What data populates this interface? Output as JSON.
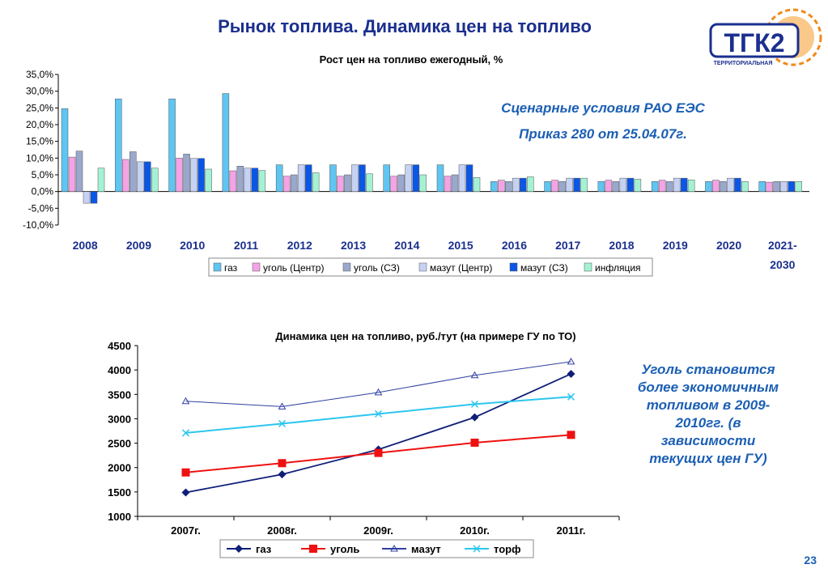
{
  "title": "Рынок топлива. Динамика цен на топливо",
  "logo": {
    "text": "ТГК2",
    "subtext": "ТЕРРИТОРИАЛЬНАЯ"
  },
  "note1": {
    "line1": "Сценарные условия РАО ЕЭС",
    "line2": "Приказ 280 от 25.04.07г."
  },
  "note2": {
    "line1": "Уголь становится",
    "line2": "более экономичным",
    "line3": "топливом  в 2009-",
    "line4": "2010гг. (в",
    "line5": "зависимости",
    "line6": "текущих цен  ГУ)"
  },
  "page_number": "23",
  "chart_data": [
    {
      "type": "bar",
      "title": "Рост цен на топливо ежегодный, %",
      "categories": [
        "2008",
        "2009",
        "2010",
        "2011",
        "2012",
        "2013",
        "2014",
        "2015",
        "2016",
        "2017",
        "2018",
        "2019",
        "2020",
        "2021-2030"
      ],
      "ylim": [
        -10,
        35
      ],
      "yticks": [
        "35,0%",
        "30,0%",
        "25,0%",
        "20,0%",
        "15,0%",
        "10,0%",
        "5,0%",
        "0,0%",
        "-5,0%",
        "-10,0%"
      ],
      "legend_position": "bottom",
      "series": [
        {
          "name": "газ",
          "color": "#5fc5f2",
          "values": [
            24.8,
            27.7,
            27.7,
            29.3,
            8,
            8,
            8,
            8,
            3,
            3,
            3,
            3,
            3,
            3
          ]
        },
        {
          "name": "уголь (Центр)",
          "color": "#f4a3e6",
          "values": [
            10.3,
            9.6,
            10,
            6.2,
            4.6,
            4.6,
            4.6,
            4.6,
            3.4,
            3.4,
            3.4,
            3.4,
            3.4,
            2.8
          ]
        },
        {
          "name": "уголь (СЗ)",
          "color": "#99a8cc",
          "values": [
            12.1,
            11.9,
            11.2,
            7.6,
            5,
            5,
            5,
            5,
            3,
            3,
            3,
            3,
            3,
            3
          ]
        },
        {
          "name": "мазут (Центр)",
          "color": "#c6d2f4",
          "values": [
            -3.5,
            8.9,
            9.9,
            7,
            8,
            8,
            8,
            8,
            4,
            4,
            4,
            4,
            4,
            3
          ]
        },
        {
          "name": "мазут (СЗ)",
          "color": "#0a56e6",
          "values": [
            -3.5,
            8.9,
            9.9,
            7,
            8,
            8,
            8,
            8,
            4,
            4,
            4,
            4,
            4,
            3
          ]
        },
        {
          "name": "инфляция",
          "color": "#a4f2d4",
          "values": [
            7,
            7,
            6.7,
            6.3,
            5.6,
            5.3,
            5,
            4.2,
            4.4,
            4,
            3.7,
            3.5,
            3,
            3
          ]
        }
      ]
    },
    {
      "type": "line",
      "title": "Динамика цен на топливо, руб./тут (на примере ГУ по ТО)",
      "categories": [
        "2007г.",
        "2008г.",
        "2009г.",
        "2010г.",
        "2011г."
      ],
      "ylim": [
        1000,
        4500
      ],
      "yticks": [
        "4500",
        "4000",
        "3500",
        "3000",
        "2500",
        "2000",
        "1500",
        "1000"
      ],
      "legend_position": "bottom",
      "series": [
        {
          "name": "газ",
          "color": "#0f1f78",
          "marker": "diamond",
          "values": [
            1490,
            1860,
            2370,
            3030,
            3920
          ]
        },
        {
          "name": "уголь",
          "color": "#ee1111",
          "marker": "square",
          "values": [
            1900,
            2090,
            2300,
            2510,
            2670
          ]
        },
        {
          "name": "мазут",
          "color": "#2f3fa0",
          "marker": "triangle",
          "values": [
            3360,
            3250,
            3540,
            3890,
            4170
          ]
        },
        {
          "name": "торф",
          "color": "#2cc6f0",
          "marker": "x",
          "values": [
            2710,
            2900,
            3100,
            3300,
            3450
          ]
        }
      ]
    }
  ]
}
